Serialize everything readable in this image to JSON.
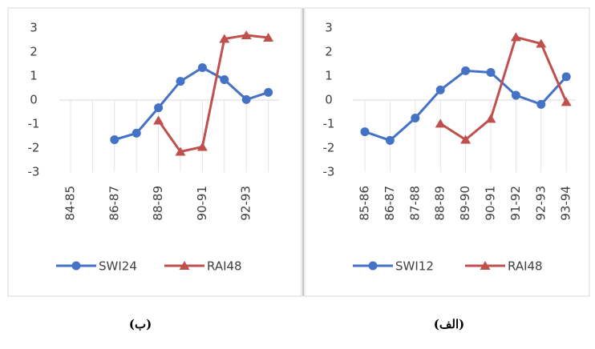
{
  "charts": [
    {
      "chart_data": {
        "type": "line",
        "caption": "(ب)",
        "categories": [
          "84-85",
          null,
          "86-87",
          null,
          "88-89",
          null,
          "90-91",
          null,
          "92-93",
          null
        ],
        "series": [
          {
            "name": "SWI24",
            "color": "#4472c4",
            "values": [
              null,
              null,
              -1.65,
              -1.38,
              -0.32,
              0.78,
              1.35,
              0.85,
              0.02,
              0.32
            ]
          },
          {
            "name": "RAI48",
            "color": "#c0504d",
            "values": [
              null,
              null,
              null,
              null,
              -0.85,
              -2.15,
              -1.95,
              2.55,
              2.7,
              2.6
            ]
          }
        ],
        "ylim": [
          -3,
          3
        ],
        "yticks": [
          -3,
          -2,
          -1,
          0,
          1,
          2,
          3
        ],
        "grid": true,
        "legend": "bottom"
      }
    },
    {
      "chart_data": {
        "type": "line",
        "caption": "(الف)",
        "categories": [
          "85-86",
          "86-87",
          "87-88",
          "88-89",
          "89-90",
          "90-91",
          "91-92",
          "92-93",
          "93-94"
        ],
        "series": [
          {
            "name": "SWI12",
            "color": "#4472c4",
            "values": [
              -1.32,
              -1.68,
              -0.75,
              0.42,
              1.22,
              1.15,
              0.2,
              -0.18,
              0.97
            ]
          },
          {
            "name": "RAI48",
            "color": "#c0504d",
            "values": [
              null,
              null,
              null,
              -0.98,
              -1.65,
              -0.78,
              2.62,
              2.35,
              -0.08
            ]
          }
        ],
        "ylim": [
          -3,
          3
        ],
        "yticks": [
          -3,
          -2,
          -1,
          0,
          1,
          2,
          3
        ],
        "grid": true,
        "legend": "bottom"
      }
    }
  ]
}
